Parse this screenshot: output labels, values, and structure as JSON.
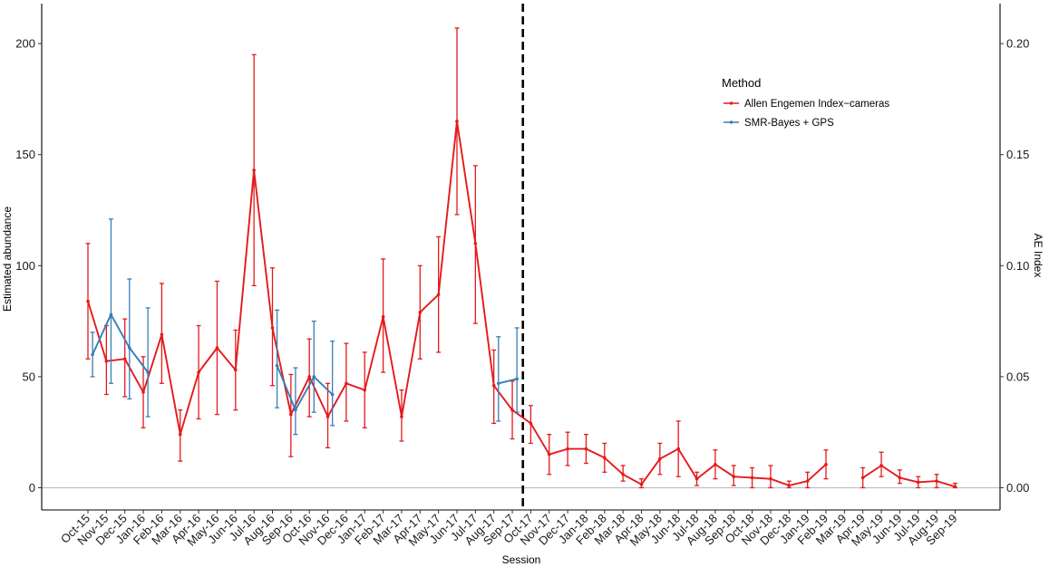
{
  "chart_data": {
    "type": "line",
    "xlabel": "Session",
    "ylabel": "Estimated abundance",
    "y2label": "AE Index",
    "ylim": [
      -10,
      218
    ],
    "y2lim": [
      -0.01,
      0.218
    ],
    "yticks": [
      0,
      50,
      100,
      150,
      200
    ],
    "y2ticks": [
      "0.00",
      "0.05",
      "0.10",
      "0.15",
      "0.20"
    ],
    "vline_at": "Oct-17",
    "vline_style": "dashed",
    "reference_line_y": 0,
    "legend": {
      "title": "Method",
      "position": "top-right"
    },
    "categories": [
      "Oct-15",
      "Nov-15",
      "Dec-15",
      "Jan-16",
      "Feb-16",
      "Mar-16",
      "Apr-16",
      "May-16",
      "Jun-16",
      "Jul-16",
      "Aug-16",
      "Sep-16",
      "Oct-16",
      "Nov-16",
      "Dec-16",
      "Jan-17",
      "Feb-17",
      "Mar-17",
      "Apr-17",
      "May-17",
      "Jun-17",
      "Jul-17",
      "Aug-17",
      "Sep-17",
      "Oct-17",
      "Nov-17",
      "Dec-17",
      "Jan-18",
      "Feb-18",
      "Mar-18",
      "Apr-18",
      "May-18",
      "Jun-18",
      "Jul-18",
      "Aug-18",
      "Sep-18",
      "Oct-18",
      "Nov-18",
      "Dec-18",
      "Jan-19",
      "Feb-19",
      "Mar-19",
      "Apr-19",
      "May-19",
      "Jun-19",
      "Jul-19",
      "Aug-19",
      "Sep-19"
    ],
    "series": [
      {
        "name": "Allen Engemen Index−cameras",
        "color": "#e41a1c",
        "offset": 0,
        "points": [
          {
            "x": "Oct-15",
            "y": 84,
            "lo": 58,
            "hi": 110
          },
          {
            "x": "Nov-15",
            "y": 57,
            "lo": 42,
            "hi": 73
          },
          {
            "x": "Dec-15",
            "y": 58,
            "lo": 41,
            "hi": 76
          },
          {
            "x": "Jan-16",
            "y": 43,
            "lo": 27,
            "hi": 59
          },
          {
            "x": "Feb-16",
            "y": 69,
            "lo": 47,
            "hi": 92
          },
          {
            "x": "Mar-16",
            "y": 24,
            "lo": 12,
            "hi": 35
          },
          {
            "x": "Apr-16",
            "y": 52,
            "lo": 31,
            "hi": 73
          },
          {
            "x": "May-16",
            "y": 63,
            "lo": 33,
            "hi": 93
          },
          {
            "x": "Jun-16",
            "y": 53,
            "lo": 35,
            "hi": 71
          },
          {
            "x": "Jul-16",
            "y": 143,
            "lo": 91,
            "hi": 195
          },
          {
            "x": "Aug-16",
            "y": 72,
            "lo": 46,
            "hi": 99
          },
          {
            "x": "Sep-16",
            "y": 33,
            "lo": 14,
            "hi": 51
          },
          {
            "x": "Oct-16",
            "y": 50,
            "lo": 32,
            "hi": 67
          },
          {
            "x": "Nov-16",
            "y": 32,
            "lo": 18,
            "hi": 47
          },
          {
            "x": "Dec-16",
            "y": 47,
            "lo": 30,
            "hi": 65
          },
          {
            "x": "Jan-17",
            "y": 44,
            "lo": 27,
            "hi": 61
          },
          {
            "x": "Feb-17",
            "y": 77,
            "lo": 52,
            "hi": 103
          },
          {
            "x": "Mar-17",
            "y": 32,
            "lo": 21,
            "hi": 44
          },
          {
            "x": "Apr-17",
            "y": 79,
            "lo": 58,
            "hi": 100
          },
          {
            "x": "May-17",
            "y": 87,
            "lo": 61,
            "hi": 113
          },
          {
            "x": "Jun-17",
            "y": 165,
            "lo": 123,
            "hi": 207
          },
          {
            "x": "Jul-17",
            "y": 110,
            "lo": 74,
            "hi": 145
          },
          {
            "x": "Aug-17",
            "y": 46,
            "lo": 29,
            "hi": 62
          },
          {
            "x": "Sep-17",
            "y": 35,
            "lo": 22,
            "hi": 48
          },
          {
            "x": "Oct-17",
            "y": 29,
            "lo": 20,
            "hi": 37
          },
          {
            "x": "Nov-17",
            "y": 15,
            "lo": 6,
            "hi": 24
          },
          {
            "x": "Dec-17",
            "y": 17.5,
            "lo": 10,
            "hi": 25
          },
          {
            "x": "Jan-18",
            "y": 17.5,
            "lo": 11,
            "hi": 24
          },
          {
            "x": "Feb-18",
            "y": 13.5,
            "lo": 7,
            "hi": 20
          },
          {
            "x": "Mar-18",
            "y": 6,
            "lo": 3,
            "hi": 10
          },
          {
            "x": "Apr-18",
            "y": 1.5,
            "lo": 0,
            "hi": 4
          },
          {
            "x": "May-18",
            "y": 13,
            "lo": 6,
            "hi": 20
          },
          {
            "x": "Jun-18",
            "y": 17.5,
            "lo": 5,
            "hi": 30
          },
          {
            "x": "Jul-18",
            "y": 4,
            "lo": 1,
            "hi": 7
          },
          {
            "x": "Aug-18",
            "y": 10.5,
            "lo": 4,
            "hi": 17
          },
          {
            "x": "Sep-18",
            "y": 5,
            "lo": 1,
            "hi": 10
          },
          {
            "x": "Oct-18",
            "y": 4.5,
            "lo": 0,
            "hi": 9
          },
          {
            "x": "Nov-18",
            "y": 4,
            "lo": 0,
            "hi": 10
          },
          {
            "x": "Dec-18",
            "y": 1,
            "lo": 0,
            "hi": 3
          },
          {
            "x": "Jan-19",
            "y": 3,
            "lo": 0,
            "hi": 7
          },
          {
            "x": "Feb-19",
            "y": 10.5,
            "lo": 4,
            "hi": 17
          },
          {
            "x": "Apr-19",
            "y": 4.5,
            "lo": 0,
            "hi": 9
          },
          {
            "x": "May-19",
            "y": 10,
            "lo": 5,
            "hi": 16
          },
          {
            "x": "Jun-19",
            "y": 4.5,
            "lo": 2,
            "hi": 8
          },
          {
            "x": "Jul-19",
            "y": 2.5,
            "lo": 0,
            "hi": 5
          },
          {
            "x": "Aug-19",
            "y": 3,
            "lo": 0,
            "hi": 6
          },
          {
            "x": "Sep-19",
            "y": 0.5,
            "lo": 0,
            "hi": 2
          }
        ]
      },
      {
        "name": "SMR-Bayes + GPS",
        "color": "#377eb8",
        "offset": 0.25,
        "points": [
          {
            "x": "Oct-15",
            "y": 60,
            "lo": 50,
            "hi": 70
          },
          {
            "x": "Nov-15",
            "y": 78,
            "lo": 47,
            "hi": 121
          },
          {
            "x": "Dec-15",
            "y": 63,
            "lo": 40,
            "hi": 94
          },
          {
            "x": "Jan-16",
            "y": 52,
            "lo": 32,
            "hi": 81
          },
          {
            "x": "Aug-16",
            "y": 55,
            "lo": 36,
            "hi": 80
          },
          {
            "x": "Sep-16",
            "y": 35,
            "lo": 24,
            "hi": 54
          },
          {
            "x": "Oct-16",
            "y": 50,
            "lo": 34,
            "hi": 75
          },
          {
            "x": "Nov-16",
            "y": 42,
            "lo": 28,
            "hi": 66
          },
          {
            "x": "Aug-17",
            "y": 47,
            "lo": 30,
            "hi": 68
          },
          {
            "x": "Sep-17",
            "y": 49,
            "lo": 34,
            "hi": 72
          }
        ]
      }
    ]
  }
}
